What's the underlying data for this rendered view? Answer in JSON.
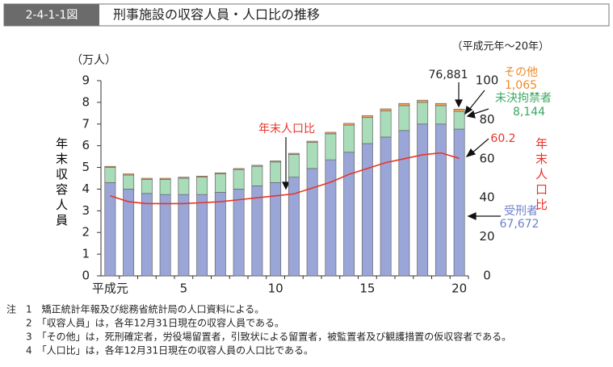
{
  "header": {
    "figure_id": "2-4-1-1図",
    "title": "刑事施設の収容人員・人口比の推移"
  },
  "chart_data": {
    "type": "bar",
    "period": "（平成元年～20年）",
    "y_unit": "（万人）",
    "y_label": "年末収容人員",
    "y2_label": "年末人口比",
    "categories": [
      "平成元",
      null,
      null,
      null,
      "5",
      null,
      null,
      null,
      null,
      "10",
      null,
      null,
      null,
      null,
      "15",
      null,
      null,
      null,
      null,
      "20"
    ],
    "ylim": [
      0,
      9
    ],
    "yticks": [
      0,
      1,
      2,
      3,
      4,
      5,
      6,
      7,
      8,
      9
    ],
    "y2lim": [
      0,
      100
    ],
    "y2ticks": [
      0,
      20,
      40,
      60,
      80,
      100
    ],
    "total_label": "76,881",
    "series": [
      {
        "name": "受刑者",
        "color": "#9aa6d8",
        "values": [
          4.3,
          4.0,
          3.8,
          3.75,
          3.75,
          3.75,
          3.85,
          4.0,
          4.15,
          4.3,
          4.55,
          4.95,
          5.35,
          5.7,
          6.1,
          6.4,
          6.7,
          7.0,
          7.0,
          6.7672
        ],
        "value_labels": [
          null,
          null,
          null,
          null,
          null,
          null,
          null,
          null,
          null,
          null,
          null,
          null,
          null,
          null,
          null,
          null,
          null,
          null,
          null,
          "67,672"
        ]
      },
      {
        "name": "未決拘禁者",
        "color": "#a9dcb9",
        "values": [
          0.7,
          0.65,
          0.65,
          0.7,
          0.75,
          0.8,
          0.85,
          0.9,
          0.9,
          0.95,
          1.05,
          1.2,
          1.2,
          1.25,
          1.2,
          1.2,
          1.15,
          1.0,
          0.85,
          0.8144
        ],
        "value_labels": [
          null,
          null,
          null,
          null,
          null,
          null,
          null,
          null,
          null,
          null,
          null,
          null,
          null,
          null,
          null,
          null,
          null,
          null,
          null,
          "8,144"
        ]
      },
      {
        "name": "その他",
        "color": "#f5a25a",
        "values": [
          0.05,
          0.05,
          0.05,
          0.05,
          0.05,
          0.05,
          0.05,
          0.05,
          0.05,
          0.05,
          0.05,
          0.06,
          0.07,
          0.08,
          0.09,
          0.1,
          0.1,
          0.1,
          0.1,
          0.1065
        ],
        "value_labels": [
          null,
          null,
          null,
          null,
          null,
          null,
          null,
          null,
          null,
          null,
          null,
          null,
          null,
          null,
          null,
          null,
          null,
          null,
          null,
          "1,065"
        ]
      },
      {
        "name": "年末人口比",
        "type": "line",
        "axis": "y2",
        "color": "#e8342a",
        "values": [
          41,
          38,
          37,
          37,
          37,
          37.5,
          38,
          39,
          40,
          41,
          42,
          45,
          48,
          52,
          55,
          58,
          60,
          62,
          63,
          60.2
        ],
        "value_labels": [
          null,
          null,
          null,
          null,
          null,
          null,
          null,
          null,
          null,
          null,
          null,
          null,
          null,
          null,
          null,
          null,
          null,
          null,
          null,
          "60.2"
        ]
      }
    ]
  },
  "notes": {
    "label": "注",
    "items": [
      "1　矯正統計年報及び総務省統計局の人口資料による。",
      "2　「収容人員」は，各年12月31日現在の収容人員である。",
      "3　「その他」は，死刑確定者，労役場留置者，引致状による留置者，被監置者及び観護措置の仮収容者である。",
      "4　「人口比」は，各年12月31日現在の収容人員の人口比である。"
    ]
  }
}
